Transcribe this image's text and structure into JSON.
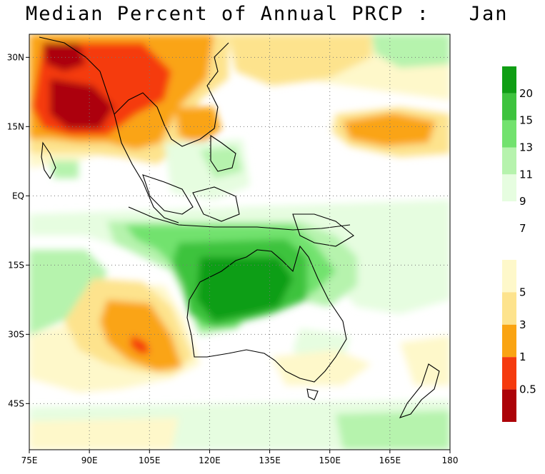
{
  "title": "Median Percent of Annual PRCP :   Jan",
  "map": {
    "lon_range": [
      75,
      180
    ],
    "lat_range": [
      -55,
      35
    ],
    "grid": "dotted",
    "x_ticks": [
      {
        "value": 75,
        "label": "75E"
      },
      {
        "value": 90,
        "label": "90E"
      },
      {
        "value": 105,
        "label": "105E"
      },
      {
        "value": 120,
        "label": "120E"
      },
      {
        "value": 135,
        "label": "135E"
      },
      {
        "value": 150,
        "label": "150E"
      },
      {
        "value": 165,
        "label": "165E"
      },
      {
        "value": 180,
        "label": "180"
      }
    ],
    "y_ticks": [
      {
        "value": 30,
        "label": "30N"
      },
      {
        "value": 15,
        "label": "15N"
      },
      {
        "value": 0,
        "label": "EQ"
      },
      {
        "value": -15,
        "label": "15S"
      },
      {
        "value": -30,
        "label": "30S"
      },
      {
        "value": -45,
        "label": "45S"
      }
    ]
  },
  "colorbar": {
    "bins": [
      {
        "color": "#0f9e14"
      },
      {
        "color": "#3ec33e"
      },
      {
        "color": "#72e26e"
      },
      {
        "color": "#b6f3ad"
      },
      {
        "color": "#e6fde0"
      },
      {
        "color": "#ffffff"
      },
      {
        "color": "#fef8ca"
      },
      {
        "color": "#fde38d"
      },
      {
        "color": "#faa412"
      },
      {
        "color": "#f53a0e"
      },
      {
        "color": "#ac0208"
      }
    ],
    "labels": [
      "20",
      "15",
      "13",
      "11",
      "9",
      "7",
      "5",
      "3",
      "1",
      "0.5"
    ]
  }
}
